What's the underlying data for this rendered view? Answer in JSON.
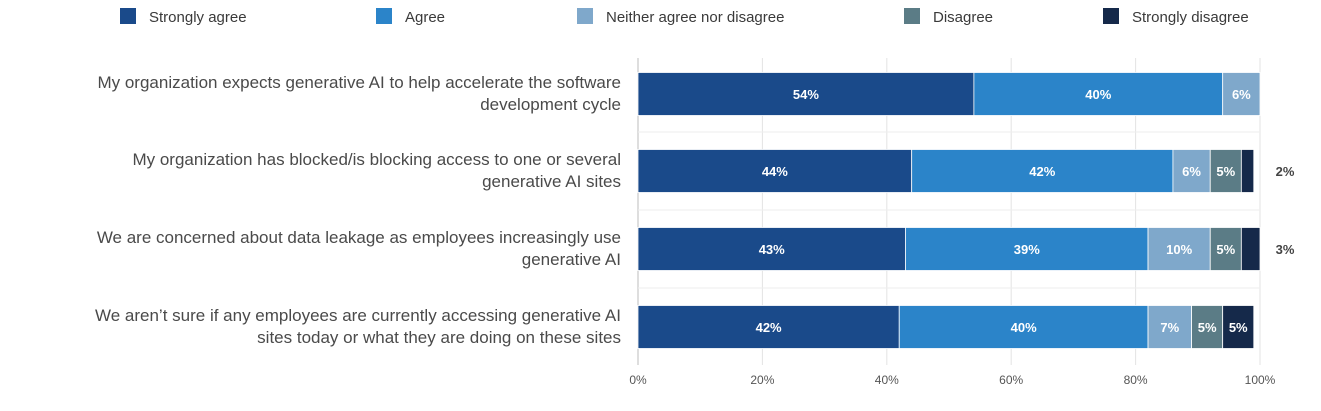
{
  "chart_data": {
    "type": "bar",
    "orientation": "horizontal",
    "stacked": true,
    "title": "",
    "xlabel": "",
    "ylabel": "",
    "xlim": [
      0,
      100
    ],
    "x_ticks": [
      "0%",
      "20%",
      "40%",
      "60%",
      "80%",
      "100%"
    ],
    "grid": true,
    "legend_position": "top",
    "categories": [
      [
        "My organization expects generative AI to help accelerate the software",
        "development cycle"
      ],
      [
        "My organization has blocked/is blocking access to one or several",
        "generative AI sites"
      ],
      [
        "We are concerned about data leakage as employees increasingly use",
        "generative AI"
      ],
      [
        "We aren’t sure if any employees are currently accessing generative AI",
        "sites today or what they are doing on these sites"
      ]
    ],
    "series": [
      {
        "name": "Strongly agree",
        "color": "#1a4a8a",
        "values": [
          54,
          44,
          43,
          42
        ],
        "labels": [
          "54%",
          "44%",
          "43%",
          "42%"
        ]
      },
      {
        "name": "Agree",
        "color": "#2b84c9",
        "values": [
          40,
          42,
          39,
          40
        ],
        "labels": [
          "40%",
          "42%",
          "39%",
          "40%"
        ]
      },
      {
        "name": "Neither agree nor disagree",
        "color": "#7fa8cb",
        "values": [
          6,
          6,
          10,
          7
        ],
        "labels": [
          "6%",
          "6%",
          "10%",
          "7%"
        ]
      },
      {
        "name": "Disagree",
        "color": "#5b7c86",
        "values": [
          0,
          5,
          5,
          5
        ],
        "labels": [
          "",
          "5%",
          "5%",
          "5%"
        ]
      },
      {
        "name": "Strongly disagree",
        "color": "#15294a",
        "values": [
          0,
          2,
          3,
          5
        ],
        "labels": [
          "",
          "2%",
          "3%",
          "5%"
        ]
      }
    ]
  }
}
